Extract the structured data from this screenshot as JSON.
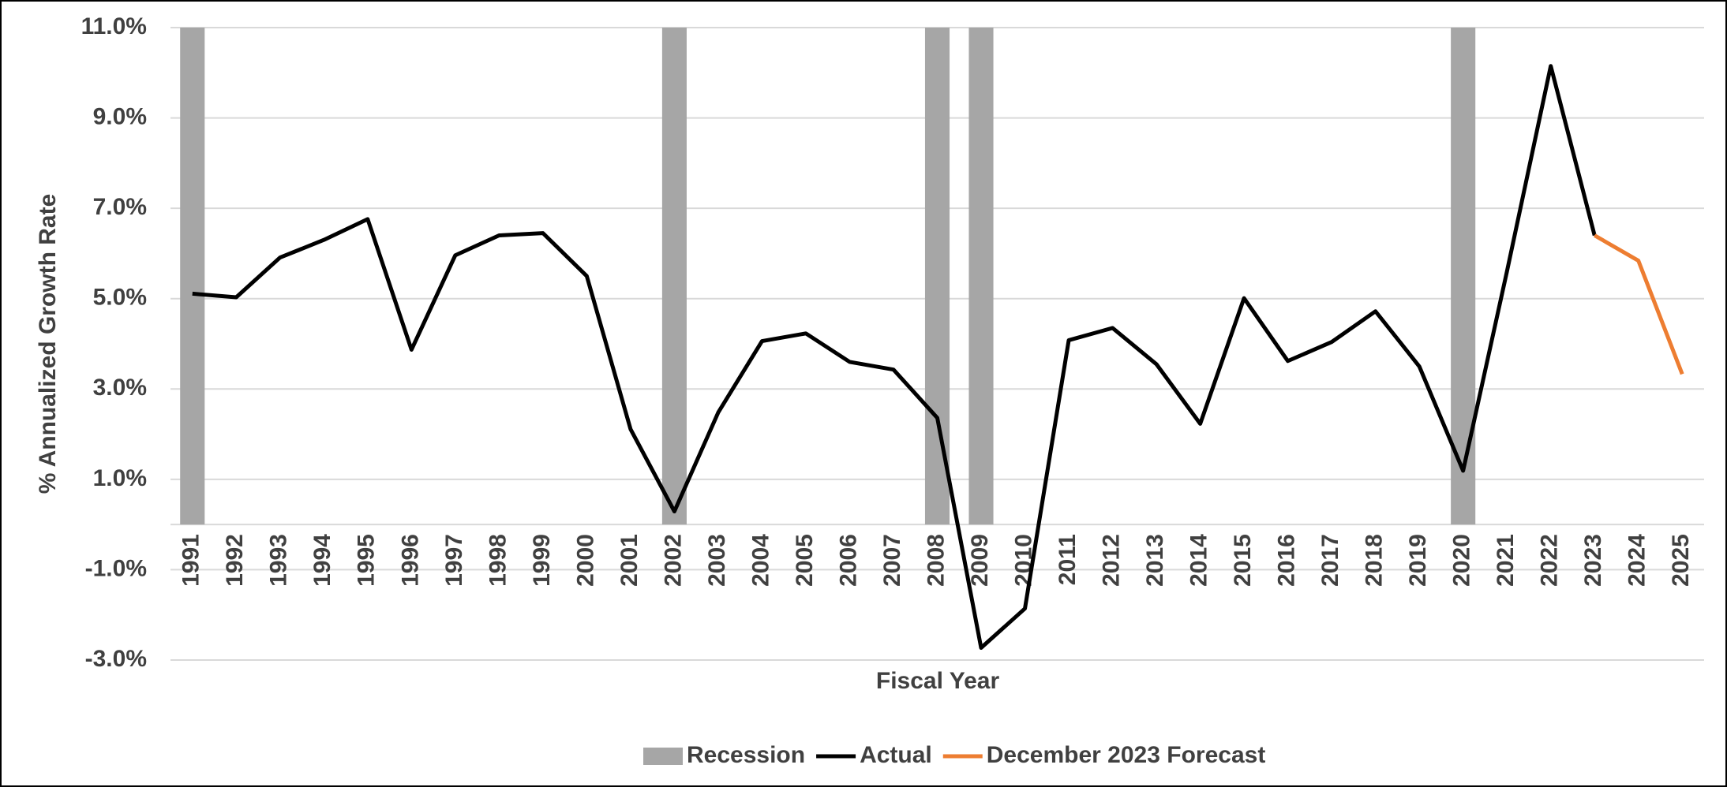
{
  "chart_data": {
    "type": "line",
    "x_label": "Fiscal Year",
    "y_label": "% Annualized Growth Rate",
    "categories": [
      "1991",
      "1992",
      "1993",
      "1994",
      "1995",
      "1996",
      "1997",
      "1998",
      "1999",
      "2000",
      "2001",
      "2002",
      "2003",
      "2004",
      "2005",
      "2006",
      "2007",
      "2008",
      "2009",
      "2010",
      "2011",
      "2012",
      "2013",
      "2014",
      "2015",
      "2016",
      "2017",
      "2018",
      "2019",
      "2020",
      "2021",
      "2022",
      "2023",
      "2024",
      "2025"
    ],
    "series": [
      {
        "name": "Recession",
        "type": "bar",
        "color": "#a6a6a6",
        "values": [
          11,
          null,
          null,
          null,
          null,
          null,
          null,
          null,
          null,
          null,
          null,
          11,
          null,
          null,
          null,
          null,
          null,
          11,
          11,
          null,
          null,
          null,
          null,
          null,
          null,
          null,
          null,
          null,
          null,
          11,
          null,
          null,
          null,
          null,
          null
        ]
      },
      {
        "name": "Actual",
        "type": "line",
        "color": "#000000",
        "values": [
          5.11,
          5.03,
          5.91,
          6.3,
          6.76,
          3.87,
          5.96,
          6.4,
          6.45,
          5.5,
          2.11,
          0.29,
          2.48,
          4.06,
          4.23,
          3.6,
          3.43,
          2.36,
          -2.73,
          -1.86,
          4.08,
          4.35,
          3.55,
          2.23,
          5.01,
          3.62,
          4.04,
          4.72,
          3.5,
          1.19,
          5.6,
          10.15,
          6.4,
          null,
          null
        ]
      },
      {
        "name": "December 2023 Forecast",
        "type": "line",
        "color": "#ed7d31",
        "values": [
          null,
          null,
          null,
          null,
          null,
          null,
          null,
          null,
          null,
          null,
          null,
          null,
          null,
          null,
          null,
          null,
          null,
          null,
          null,
          null,
          null,
          null,
          null,
          null,
          null,
          null,
          null,
          null,
          null,
          null,
          null,
          null,
          6.4,
          5.84,
          3.33
        ]
      }
    ],
    "ylim": [
      -3,
      11
    ],
    "yticks": [
      {
        "value": -3,
        "label": "-3.0%"
      },
      {
        "value": -1,
        "label": "-1.0%"
      },
      {
        "value": 1,
        "label": "1.0%"
      },
      {
        "value": 3,
        "label": "3.0%"
      },
      {
        "value": 5,
        "label": "5.0%"
      },
      {
        "value": 7,
        "label": "7.0%"
      },
      {
        "value": 9,
        "label": "9.0%"
      },
      {
        "value": 11,
        "label": "11.0%"
      }
    ],
    "grid": true,
    "legend": "bottom"
  }
}
